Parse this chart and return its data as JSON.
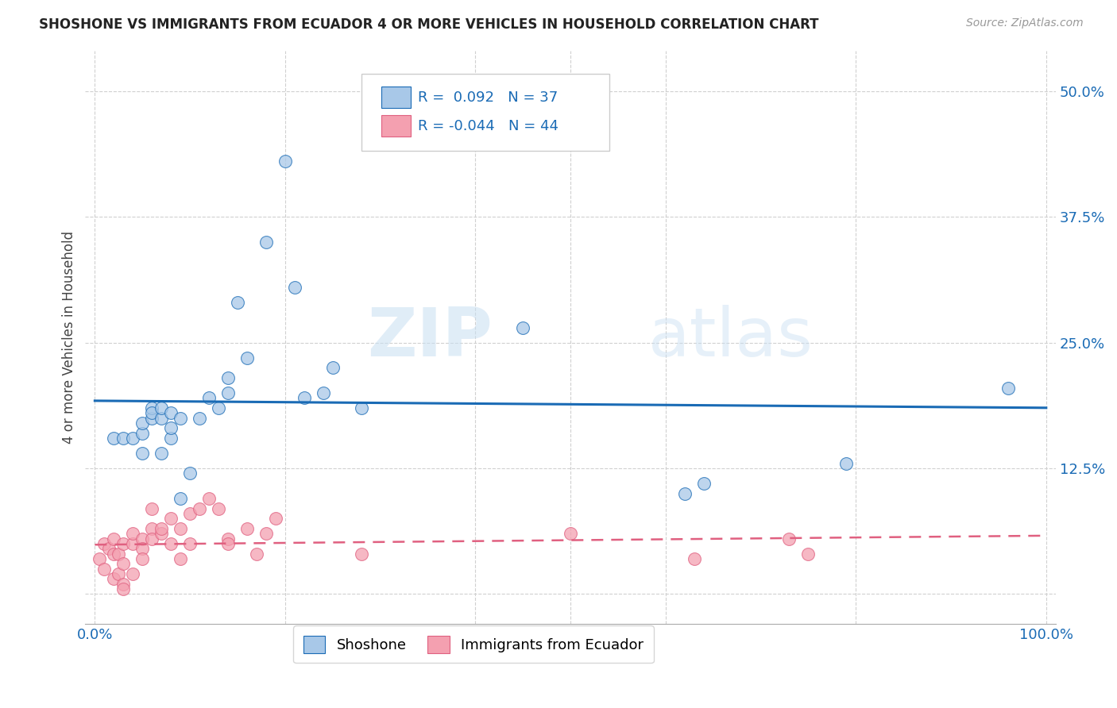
{
  "title": "SHOSHONE VS IMMIGRANTS FROM ECUADOR 4 OR MORE VEHICLES IN HOUSEHOLD CORRELATION CHART",
  "source": "Source: ZipAtlas.com",
  "ylabel": "4 or more Vehicles in Household",
  "yticks": [
    0.0,
    0.125,
    0.25,
    0.375,
    0.5
  ],
  "ytick_labels": [
    "",
    "12.5%",
    "25.0%",
    "37.5%",
    "50.0%"
  ],
  "xlim": [
    -0.01,
    1.01
  ],
  "ylim": [
    -0.03,
    0.54
  ],
  "legend_blue_label": "Shoshone",
  "legend_pink_label": "Immigrants from Ecuador",
  "R_blue": 0.092,
  "N_blue": 37,
  "R_pink": -0.044,
  "N_pink": 44,
  "blue_color": "#a8c8e8",
  "pink_color": "#f4a0b0",
  "line_blue": "#1a6bb5",
  "line_pink": "#e06080",
  "blue_scatter_x": [
    0.02,
    0.03,
    0.04,
    0.05,
    0.05,
    0.05,
    0.06,
    0.06,
    0.06,
    0.07,
    0.07,
    0.07,
    0.08,
    0.08,
    0.08,
    0.09,
    0.09,
    0.1,
    0.11,
    0.12,
    0.13,
    0.14,
    0.14,
    0.15,
    0.16,
    0.18,
    0.2,
    0.21,
    0.22,
    0.24,
    0.25,
    0.28,
    0.45,
    0.62,
    0.64,
    0.79,
    0.96
  ],
  "blue_scatter_y": [
    0.155,
    0.155,
    0.155,
    0.16,
    0.17,
    0.14,
    0.175,
    0.185,
    0.18,
    0.175,
    0.185,
    0.14,
    0.155,
    0.165,
    0.18,
    0.175,
    0.095,
    0.12,
    0.175,
    0.195,
    0.185,
    0.215,
    0.2,
    0.29,
    0.235,
    0.35,
    0.43,
    0.305,
    0.195,
    0.2,
    0.225,
    0.185,
    0.265,
    0.1,
    0.11,
    0.13,
    0.205
  ],
  "pink_scatter_x": [
    0.005,
    0.01,
    0.01,
    0.015,
    0.02,
    0.02,
    0.02,
    0.025,
    0.025,
    0.03,
    0.03,
    0.03,
    0.03,
    0.04,
    0.04,
    0.04,
    0.05,
    0.05,
    0.05,
    0.06,
    0.06,
    0.06,
    0.07,
    0.07,
    0.08,
    0.08,
    0.09,
    0.09,
    0.1,
    0.1,
    0.11,
    0.12,
    0.13,
    0.14,
    0.14,
    0.16,
    0.17,
    0.18,
    0.19,
    0.28,
    0.5,
    0.63,
    0.73,
    0.75
  ],
  "pink_scatter_y": [
    0.035,
    0.05,
    0.025,
    0.045,
    0.04,
    0.055,
    0.015,
    0.04,
    0.02,
    0.05,
    0.03,
    0.01,
    0.005,
    0.05,
    0.06,
    0.02,
    0.055,
    0.045,
    0.035,
    0.065,
    0.055,
    0.085,
    0.06,
    0.065,
    0.075,
    0.05,
    0.065,
    0.035,
    0.08,
    0.05,
    0.085,
    0.095,
    0.085,
    0.055,
    0.05,
    0.065,
    0.04,
    0.06,
    0.075,
    0.04,
    0.06,
    0.035,
    0.055,
    0.04
  ],
  "watermark_zip": "ZIP",
  "watermark_atlas": "atlas",
  "background_color": "#ffffff",
  "grid_color": "#d0d0d0"
}
